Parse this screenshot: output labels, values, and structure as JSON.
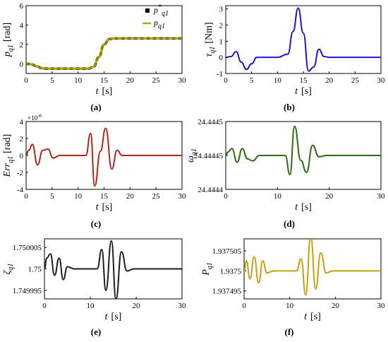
{
  "chart_data": [
    {
      "panel_label": "(a)",
      "type": "line",
      "xlabel": "t",
      "xunit": "[s]",
      "ylabel": "p_{q1}",
      "yunit": "[rad]",
      "xlim": [
        0,
        30
      ],
      "ylim": [
        -1,
        6
      ],
      "xticks": [
        "0",
        "5",
        "10",
        "15",
        "20",
        "25",
        "30"
      ],
      "yticks": [
        "0",
        "2",
        "4",
        "6"
      ],
      "legend": {
        "position": "top-right",
        "entries": [
          {
            "name": "p*_{q1}",
            "color": "#000000",
            "style": "square-marker"
          },
          {
            "name": "p_{q1}",
            "color": "#b3a60a",
            "style": "line"
          }
        ]
      },
      "series": [
        {
          "name": "p*_{q1}",
          "color": "#000000",
          "dashed": true,
          "x": [
            0,
            1,
            2,
            3,
            4,
            5,
            6,
            8,
            10,
            12,
            13,
            14,
            15,
            16,
            17,
            18,
            20,
            25,
            30
          ],
          "y": [
            0,
            -0.05,
            -0.25,
            -0.45,
            -0.5,
            -0.5,
            -0.5,
            -0.5,
            -0.5,
            -0.5,
            -0.3,
            0.7,
            2.0,
            2.55,
            2.62,
            2.62,
            2.62,
            2.62,
            2.62
          ]
        },
        {
          "name": "p_{q1}",
          "color": "#b3a60a",
          "x": [
            0,
            1,
            2,
            3,
            4,
            5,
            6,
            8,
            10,
            12,
            13,
            14,
            15,
            16,
            17,
            18,
            20,
            25,
            30
          ],
          "y": [
            0,
            -0.05,
            -0.25,
            -0.45,
            -0.5,
            -0.5,
            -0.5,
            -0.5,
            -0.5,
            -0.5,
            -0.3,
            0.7,
            2.0,
            2.55,
            2.62,
            2.62,
            2.62,
            2.62,
            2.62
          ]
        }
      ]
    },
    {
      "panel_label": "(b)",
      "type": "line",
      "xlabel": "t",
      "xunit": "[s]",
      "ylabel": "τ_{q1}",
      "yunit": "[Nm]",
      "xlim": [
        0,
        30
      ],
      "ylim": [
        -1,
        3.2
      ],
      "xticks": [
        "0",
        "5",
        "10",
        "15",
        "20",
        "25",
        "30"
      ],
      "yticks": [
        "-1",
        "0",
        "1",
        "2",
        "3"
      ],
      "series": [
        {
          "name": "",
          "color": "#1a1acc",
          "x": [
            0,
            1,
            2,
            3,
            4,
            5,
            6,
            8,
            10,
            12,
            13,
            14,
            15,
            16,
            17,
            18,
            19,
            20,
            25,
            30
          ],
          "y": [
            0,
            0.05,
            0.35,
            -0.3,
            -0.75,
            -0.4,
            0,
            0,
            0,
            0.2,
            1.6,
            3.05,
            1.5,
            -0.85,
            -0.6,
            0.5,
            0.05,
            0,
            0,
            0
          ]
        }
      ]
    },
    {
      "panel_label": "(c)",
      "type": "line",
      "xlabel": "t",
      "xunit": "[s]",
      "ylabel": "Err_{q1}",
      "yunit": "[rad]",
      "exponent": "×10^-6",
      "xlim": [
        0,
        30
      ],
      "ylim": [
        -4,
        4
      ],
      "xticks": [
        "0",
        "5",
        "10",
        "15",
        "20",
        "25",
        "30"
      ],
      "yticks": [
        "-4",
        "-2",
        "0",
        "2",
        "4"
      ],
      "series": [
        {
          "name": "",
          "color": "#b0281c",
          "x": [
            0,
            0.5,
            1.2,
            2.2,
            3.2,
            4.2,
            5.2,
            6.5,
            8,
            10,
            11.5,
            12.4,
            13.2,
            14.3,
            15.3,
            16.5,
            17.5,
            18.5,
            20,
            25,
            30
          ],
          "y": [
            0,
            0.6,
            1.3,
            -1.1,
            0.6,
            0.75,
            -0.3,
            0,
            0,
            0,
            0,
            2.6,
            -3.6,
            0.5,
            3.2,
            -1.6,
            0.6,
            0,
            0,
            0,
            0
          ]
        }
      ]
    },
    {
      "panel_label": "(d)",
      "type": "line",
      "xlabel": "t",
      "xunit": "[s]",
      "ylabel": "ω_{q1}",
      "xlim": [
        0,
        30
      ],
      "ylim": [
        24.4444,
        24.4445
      ],
      "xticks": [
        "0",
        "10",
        "20",
        "30"
      ],
      "yticks": [
        "24.4444",
        "24.44445",
        "24.4445"
      ],
      "series": [
        {
          "name": "",
          "color": "#2d6b16",
          "x": [
            0,
            0.4,
            1.2,
            2.2,
            3.2,
            4.2,
            5.2,
            6.5,
            8,
            10,
            11.5,
            12.4,
            13.3,
            14.5,
            15.6,
            16.8,
            18,
            19.5,
            20,
            25,
            30
          ],
          "y": [
            24.44445,
            24.444455,
            24.44446,
            24.44444,
            24.44446,
            24.444445,
            24.444442,
            24.44445,
            24.44445,
            24.44445,
            24.44445,
            24.444422,
            24.444493,
            24.444443,
            24.444425,
            24.444465,
            24.444448,
            24.44445,
            24.44445,
            24.44445,
            24.44445
          ]
        }
      ]
    },
    {
      "panel_label": "(e)",
      "type": "line",
      "xlabel": "t",
      "xunit": "[s]",
      "ylabel": "ζ_{q1}",
      "xlim": [
        0,
        30
      ],
      "ylim": [
        1.749993,
        1.750007
      ],
      "xticks": [
        "0",
        "10",
        "20",
        "30"
      ],
      "yticks": [
        "1.749995",
        "1.75",
        "1.750005"
      ],
      "series": [
        {
          "name": "",
          "color": "#1e1e1e",
          "x": [
            0,
            0.5,
            1.3,
            2.2,
            3.2,
            4.1,
            5,
            6.5,
            8,
            10,
            11.5,
            12.5,
            13.4,
            14.6,
            15.6,
            16.8,
            18,
            19.5,
            20,
            25,
            30
          ],
          "y": [
            1.75,
            1.7500025,
            1.7500035,
            1.7499985,
            1.7500025,
            1.7499975,
            1.7500005,
            1.75,
            1.75,
            1.75,
            1.75,
            1.7500045,
            1.749995,
            1.7500065,
            1.749993,
            1.750004,
            1.7499995,
            1.75,
            1.75,
            1.75,
            1.75
          ]
        }
      ]
    },
    {
      "panel_label": "(f)",
      "type": "line",
      "xlabel": "t",
      "xunit": "[s]",
      "ylabel": "P_{q1}",
      "xlim": [
        0,
        30
      ],
      "ylim": [
        1.937493,
        1.937508
      ],
      "xticks": [
        "0",
        "10",
        "20",
        "30"
      ],
      "yticks": [
        "1.937495",
        "1.9375",
        "1.937505"
      ],
      "series": [
        {
          "name": "",
          "color": "#c4a012",
          "x": [
            0,
            0.5,
            1.3,
            2.2,
            3.2,
            4.1,
            5,
            6.5,
            8,
            10,
            11.5,
            12.5,
            13.5,
            14.6,
            15.7,
            16.8,
            18,
            19.5,
            20,
            25,
            30
          ],
          "y": [
            1.9375,
            1.9375025,
            1.937498,
            1.9375035,
            1.937497,
            1.9375025,
            1.9374995,
            1.9375,
            1.9375,
            1.9375,
            1.9375,
            1.937503,
            1.937494,
            1.9375085,
            1.9374955,
            1.9375045,
            1.9374995,
            1.9375,
            1.9375,
            1.9375,
            1.9375
          ]
        }
      ]
    }
  ]
}
